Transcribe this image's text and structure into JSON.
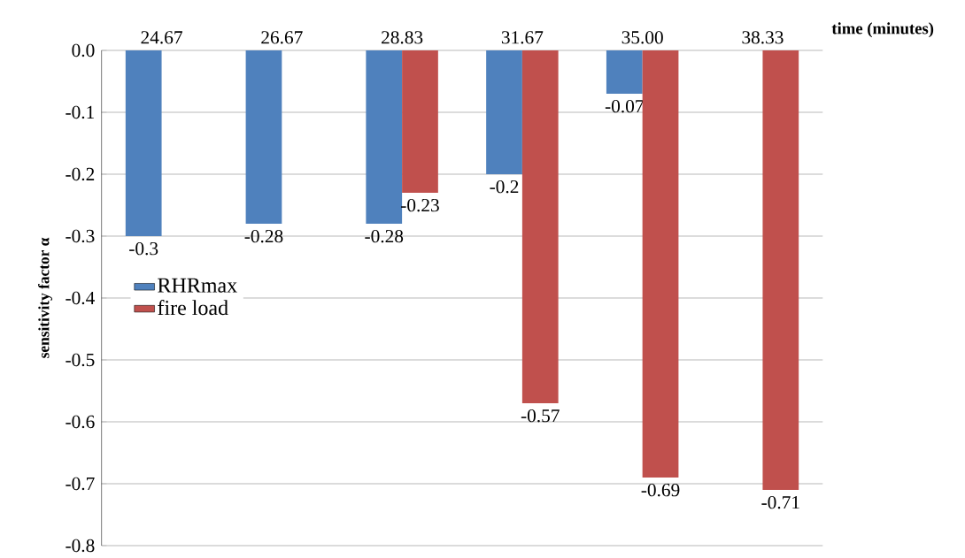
{
  "chart_data": {
    "type": "bar",
    "xlabel": "time (minutes)",
    "ylabel": "sensitivity factor **α**",
    "categories": [
      "24.67",
      "26.67",
      "28.83",
      "31.67",
      "35.00",
      "38.33"
    ],
    "series": [
      {
        "name": "RHRmax",
        "color": "#4f81bd",
        "values": [
          -0.3,
          -0.28,
          -0.28,
          -0.2,
          -0.07,
          null
        ],
        "value_labels": [
          "-0.3",
          "-0.28",
          "-0.28",
          "-0.2",
          "-0.07",
          null
        ]
      },
      {
        "name": "fire load",
        "color": "#c0504d",
        "values": [
          null,
          null,
          -0.23,
          -0.57,
          -0.69,
          -0.71
        ],
        "value_labels": [
          null,
          null,
          "-0.23",
          "-0.57",
          "-0.69",
          "-0.71"
        ]
      }
    ],
    "ylim": [
      -0.8,
      0
    ],
    "yticks": [
      {
        "value": 0,
        "label": "0.0"
      },
      -0.1,
      -0.2,
      -0.3,
      -0.4,
      -0.5,
      -0.6,
      -0.7,
      -0.8
    ],
    "grid": "y",
    "legend": "left"
  }
}
